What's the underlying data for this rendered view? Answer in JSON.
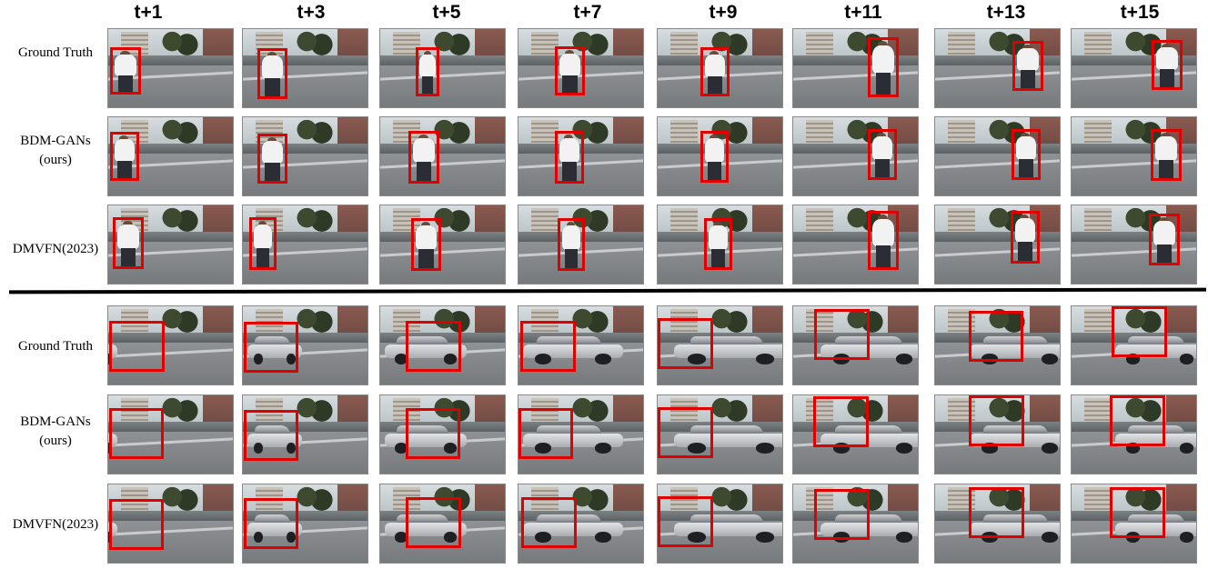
{
  "column_headers": [
    "t+1",
    "t+3",
    "t+5",
    "t+7",
    "t+9",
    "t+11",
    "t+13",
    "t+15"
  ],
  "panels": [
    {
      "subject": "pedestrian",
      "rows": [
        {
          "label": "Ground Truth",
          "sub": ""
        },
        {
          "label": "BDM-GANs",
          "sub": "(ours)"
        },
        {
          "label": "DMVFN(2023)",
          "sub": ""
        }
      ]
    },
    {
      "subject": "car",
      "rows": [
        {
          "label": "Ground Truth",
          "sub": ""
        },
        {
          "label": "BDM-GANs",
          "sub": "(ours)"
        },
        {
          "label": "DMVFN(2023)",
          "sub": ""
        }
      ]
    }
  ],
  "colors": {
    "bounding_box": "#e00000",
    "divider": "#000000"
  }
}
